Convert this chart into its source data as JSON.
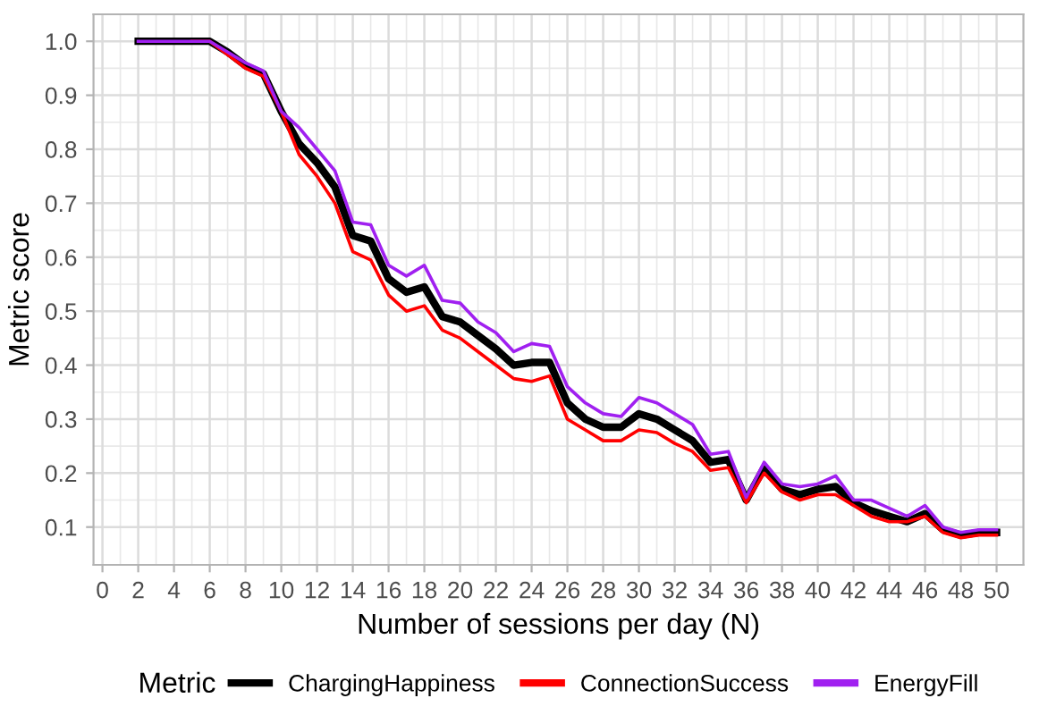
{
  "chart_data": {
    "type": "line",
    "xlabel": "Number of sessions per day (N)",
    "ylabel": "Metric score",
    "legend_title": "Metric",
    "legend": "bottom",
    "grid": true,
    "marker": "none",
    "line_style": "solid",
    "x": [
      2,
      3,
      4,
      5,
      6,
      7,
      8,
      9,
      10,
      11,
      12,
      13,
      14,
      15,
      16,
      17,
      18,
      19,
      20,
      21,
      22,
      23,
      24,
      25,
      26,
      27,
      28,
      29,
      30,
      31,
      32,
      33,
      34,
      35,
      36,
      37,
      38,
      39,
      40,
      41,
      42,
      43,
      44,
      45,
      46,
      47,
      48,
      49,
      50
    ],
    "xlim": [
      -0.5,
      51.5
    ],
    "xticks": [
      0,
      2,
      4,
      6,
      8,
      10,
      12,
      14,
      16,
      18,
      20,
      22,
      24,
      26,
      28,
      30,
      32,
      34,
      36,
      38,
      40,
      42,
      44,
      46,
      48,
      50
    ],
    "ylim": [
      0.03,
      1.05
    ],
    "yticks": [
      {
        "value": 0.1,
        "label": "0.1"
      },
      {
        "value": 0.2,
        "label": "0.2"
      },
      {
        "value": 0.3,
        "label": "0.3"
      },
      {
        "value": 0.4,
        "label": "0.4"
      },
      {
        "value": 0.5,
        "label": "0.5"
      },
      {
        "value": 0.6,
        "label": "0.6"
      },
      {
        "value": 0.7,
        "label": "0.7"
      },
      {
        "value": 0.8,
        "label": "0.8"
      },
      {
        "value": 0.9,
        "label": "0.9"
      },
      {
        "value": 1.0,
        "label": "1.0"
      }
    ],
    "series": [
      {
        "name": "ChargingHappiness",
        "color": "#000000",
        "values": [
          1.0,
          1.0,
          1.0,
          1.0,
          1.0,
          0.98,
          0.955,
          0.94,
          0.87,
          0.81,
          0.775,
          0.73,
          0.64,
          0.63,
          0.56,
          0.535,
          0.545,
          0.49,
          0.48,
          0.455,
          0.43,
          0.4,
          0.405,
          0.405,
          0.33,
          0.3,
          0.285,
          0.285,
          0.31,
          0.3,
          0.28,
          0.26,
          0.22,
          0.225,
          0.15,
          0.21,
          0.17,
          0.16,
          0.17,
          0.175,
          0.145,
          0.13,
          0.12,
          0.11,
          0.125,
          0.095,
          0.085,
          0.09,
          0.09
        ]
      },
      {
        "name": "ConnectionSuccess",
        "color": "#ff0000",
        "values": [
          null,
          null,
          null,
          1.0,
          1.0,
          0.975,
          0.95,
          0.935,
          0.87,
          0.79,
          0.75,
          0.7,
          0.61,
          0.595,
          0.53,
          0.5,
          0.51,
          0.465,
          0.45,
          0.425,
          0.4,
          0.375,
          0.37,
          0.38,
          0.3,
          0.28,
          0.26,
          0.26,
          0.28,
          0.275,
          0.255,
          0.24,
          0.205,
          0.21,
          0.145,
          0.2,
          0.165,
          0.15,
          0.16,
          0.16,
          0.14,
          0.12,
          0.11,
          0.11,
          0.12,
          0.09,
          0.08,
          0.085,
          0.085
        ]
      },
      {
        "name": "EnergyFill",
        "color": "#a020f0",
        "values": [
          1.0,
          1.0,
          1.0,
          1.0,
          1.0,
          0.98,
          0.96,
          0.945,
          0.87,
          0.84,
          0.8,
          0.76,
          0.665,
          0.66,
          0.585,
          0.565,
          0.585,
          0.52,
          0.515,
          0.48,
          0.46,
          0.425,
          0.44,
          0.435,
          0.36,
          0.33,
          0.31,
          0.305,
          0.34,
          0.33,
          0.31,
          0.29,
          0.235,
          0.24,
          0.155,
          0.22,
          0.18,
          0.175,
          0.18,
          0.195,
          0.15,
          0.15,
          0.135,
          0.12,
          0.14,
          0.1,
          0.09,
          0.095,
          0.095
        ]
      }
    ]
  }
}
